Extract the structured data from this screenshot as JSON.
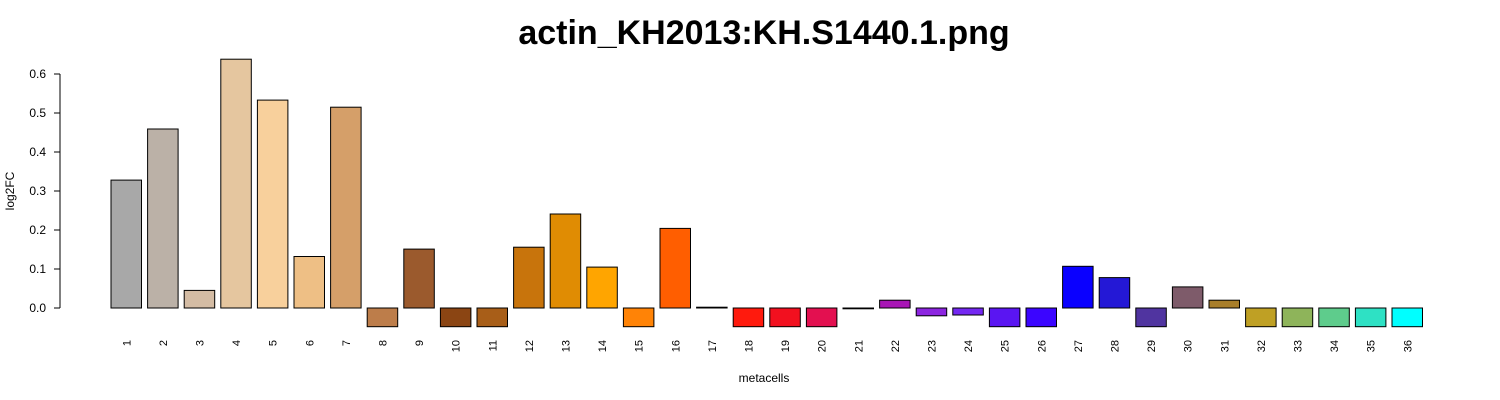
{
  "chart_data": {
    "type": "bar",
    "title": "actin_KH2013:KH.S1440.1.png",
    "xlabel": "metacells",
    "ylabel": "log2FC",
    "ylim": [
      -0.05,
      0.65
    ],
    "yticks": [
      "0.0",
      "0.1",
      "0.2",
      "0.3",
      "0.4",
      "0.5",
      "0.6"
    ],
    "grid": false,
    "legend": "none",
    "categories": [
      "1",
      "2",
      "3",
      "4",
      "5",
      "6",
      "7",
      "8",
      "9",
      "10",
      "11",
      "12",
      "13",
      "14",
      "15",
      "16",
      "17",
      "18",
      "19",
      "20",
      "21",
      "22",
      "23",
      "24",
      "25",
      "26",
      "27",
      "28",
      "29",
      "30",
      "31",
      "32",
      "33",
      "34",
      "35",
      "36"
    ],
    "values": [
      0.328,
      0.459,
      0.045,
      0.638,
      0.533,
      0.132,
      0.515,
      -0.048,
      0.151,
      -0.048,
      -0.048,
      0.156,
      0.241,
      0.105,
      -0.048,
      0.204,
      0.002,
      -0.048,
      -0.048,
      -0.048,
      -0.002,
      0.02,
      -0.02,
      -0.018,
      -0.048,
      -0.048,
      0.107,
      0.078,
      -0.048,
      0.054,
      0.02,
      -0.048,
      -0.048,
      -0.048,
      -0.048,
      -0.048
    ],
    "colors": [
      "#a8a8a8",
      "#bbb1a7",
      "#d4bca4",
      "#e5c69f",
      "#f8d09c",
      "#eebf85",
      "#d59f69",
      "#bd7d4a",
      "#9b5a2d",
      "#8b4513",
      "#a85e18",
      "#c8740c",
      "#e08c03",
      "#ffa500",
      "#ff8306",
      "#ff5e00",
      "#ff3300",
      "#ff1a0d",
      "#f2101f",
      "#e31050",
      "#c71480",
      "#a815b5",
      "#8c25e0",
      "#7428f2",
      "#5a15f2",
      "#3b05ff",
      "#0a00ff",
      "#2418d6",
      "#5034a0",
      "#7e5b6a",
      "#a87e2a",
      "#bfa024",
      "#8eb45a",
      "#5ecc8c",
      "#2ee1c4",
      "#00ffff"
    ]
  }
}
